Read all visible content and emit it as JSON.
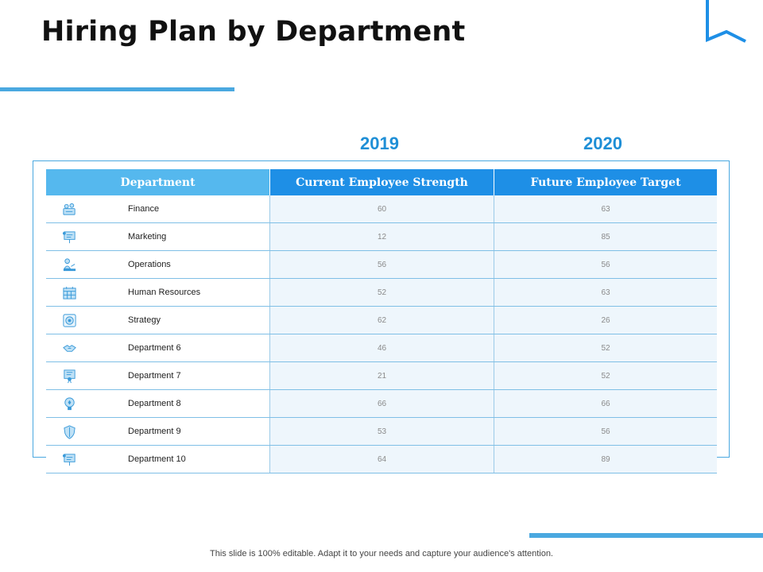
{
  "title": "Hiring Plan by Department",
  "years": [
    "2019",
    "2020"
  ],
  "table": {
    "headers": [
      "Department",
      "Current Employee Strength",
      "Future Employee Target"
    ],
    "rows": [
      {
        "department": "Finance",
        "icon": "money-bag-icon",
        "current": "60",
        "future": "63"
      },
      {
        "department": "Marketing",
        "icon": "presentation-board-icon",
        "current": "12",
        "future": "85"
      },
      {
        "department": "Operations",
        "icon": "worker-desk-icon",
        "current": "56",
        "future": "56"
      },
      {
        "department": "Human Resources",
        "icon": "calendar-grid-icon",
        "current": "52",
        "future": "63"
      },
      {
        "department": "Strategy",
        "icon": "target-gear-icon",
        "current": "62",
        "future": "26"
      },
      {
        "department": "Department 6",
        "icon": "handshake-icon",
        "current": "46",
        "future": "52"
      },
      {
        "department": "Department 7",
        "icon": "certificate-icon",
        "current": "21",
        "future": "52"
      },
      {
        "department": "Department 8",
        "icon": "lightbulb-icon",
        "current": "66",
        "future": "66"
      },
      {
        "department": "Department 9",
        "icon": "shield-icon",
        "current": "53",
        "future": "56"
      },
      {
        "department": "Department 10",
        "icon": "presentation-board-icon",
        "current": "64",
        "future": "89"
      }
    ]
  },
  "footer": "This slide is 100% editable. Adapt it to your needs and capture your audience's attention.",
  "colors": {
    "accent": "#4aa8e0",
    "header_dark": "#1e8fe6",
    "header_light": "#55b8ee",
    "year_text": "#1f8fd6",
    "cell_fill": "#eef6fc"
  }
}
